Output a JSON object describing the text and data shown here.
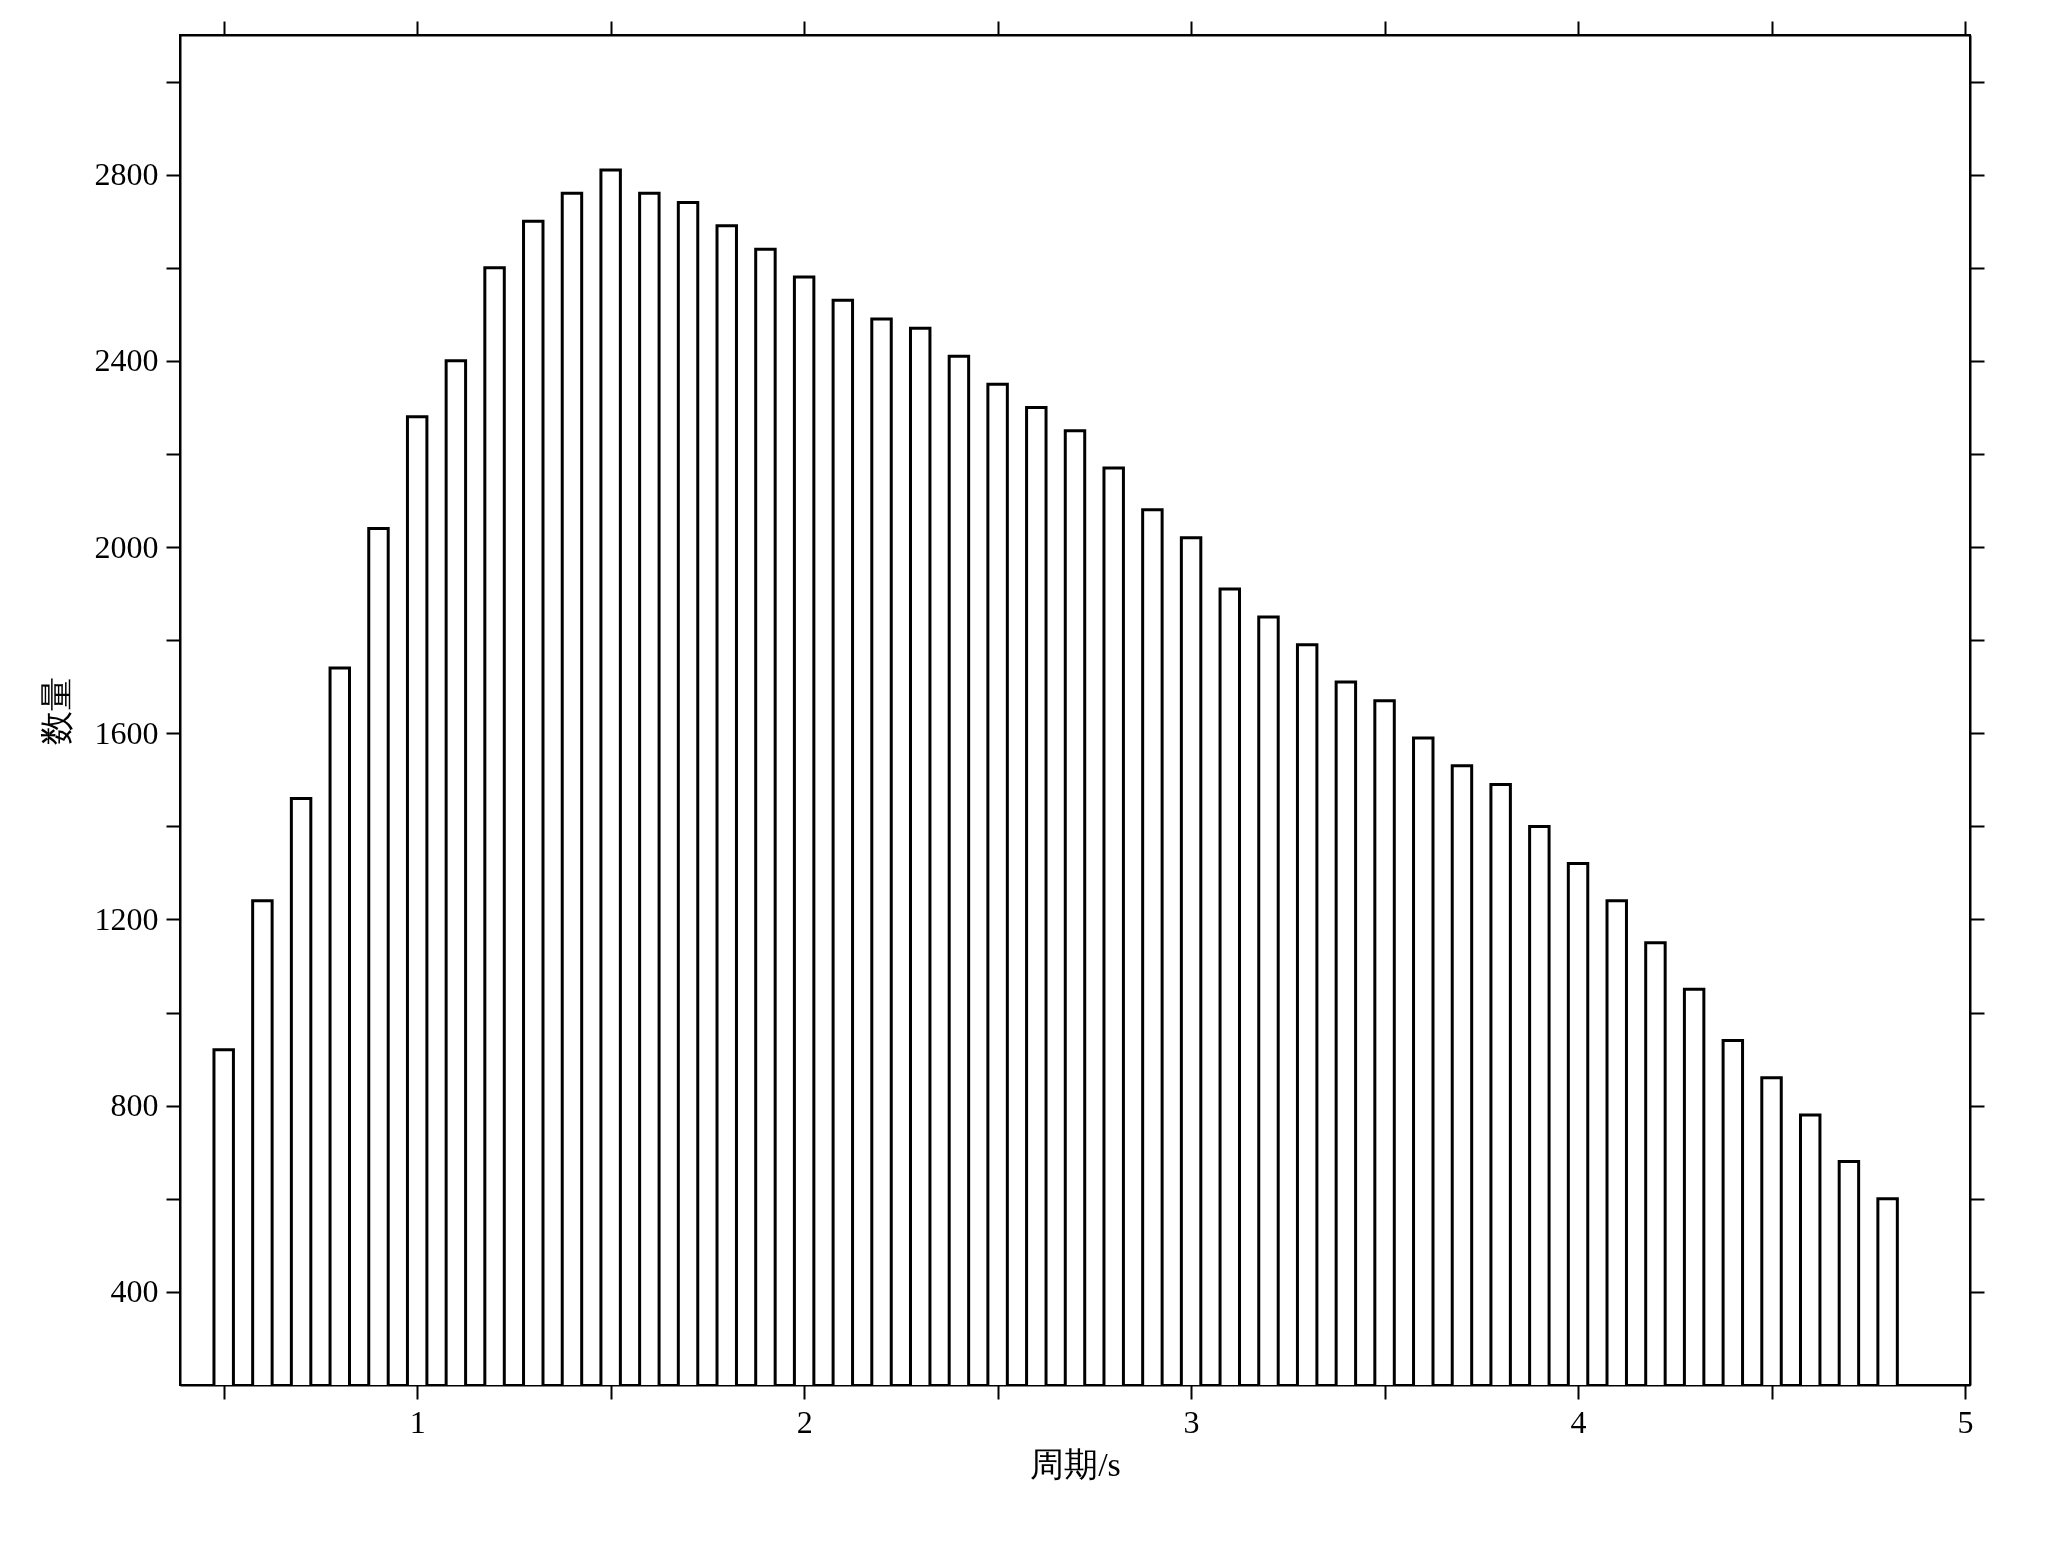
{
  "chart_data": {
    "type": "bar",
    "xlabel": "周期/s",
    "ylabel": "数量",
    "color": "#ffffff",
    "x": [
      0.5,
      0.6,
      0.7,
      0.8,
      0.9,
      1.0,
      1.1,
      1.2,
      1.3,
      1.4,
      1.5,
      1.6,
      1.7,
      1.8,
      1.9,
      2.0,
      2.1,
      2.2,
      2.3,
      2.4,
      2.5,
      2.6,
      2.7,
      2.8,
      2.9,
      3.0,
      3.1,
      3.2,
      3.3,
      3.4,
      3.5,
      3.6,
      3.7,
      3.8,
      3.9,
      4.0,
      4.1,
      4.2,
      4.3,
      4.4,
      4.5,
      4.6,
      4.7,
      4.8
    ],
    "values": [
      920,
      1240,
      1460,
      1740,
      2040,
      2280,
      2400,
      2600,
      2700,
      2760,
      2810,
      2760,
      2740,
      2690,
      2640,
      2580,
      2530,
      2490,
      2470,
      2410,
      2350,
      2300,
      2250,
      2170,
      2080,
      2020,
      1910,
      1850,
      1790,
      1710,
      1670,
      1590,
      1530,
      1490,
      1400,
      1320,
      1240,
      1150,
      1050,
      940,
      860,
      780,
      680,
      600
    ],
    "xlim": [
      0.4,
      5
    ],
    "xticks": [
      {
        "value": 0.5,
        "label": null
      },
      1,
      {
        "value": 1.5,
        "label": null
      },
      2,
      {
        "value": 2.5,
        "label": null
      },
      3,
      {
        "value": 3.5,
        "label": null
      },
      4,
      {
        "value": 4.5,
        "label": null
      },
      5
    ],
    "ylim": [
      200,
      3100
    ],
    "yticks": [
      400,
      {
        "value": 600,
        "label": null
      },
      800,
      {
        "value": 1000,
        "label": null
      },
      1200,
      {
        "value": 1400,
        "label": null
      },
      1600,
      {
        "value": 1800,
        "label": null
      },
      2000,
      {
        "value": 2200,
        "label": null
      },
      2400,
      {
        "value": 2600,
        "label": null
      },
      2800,
      {
        "value": 3000,
        "label": null
      }
    ]
  }
}
